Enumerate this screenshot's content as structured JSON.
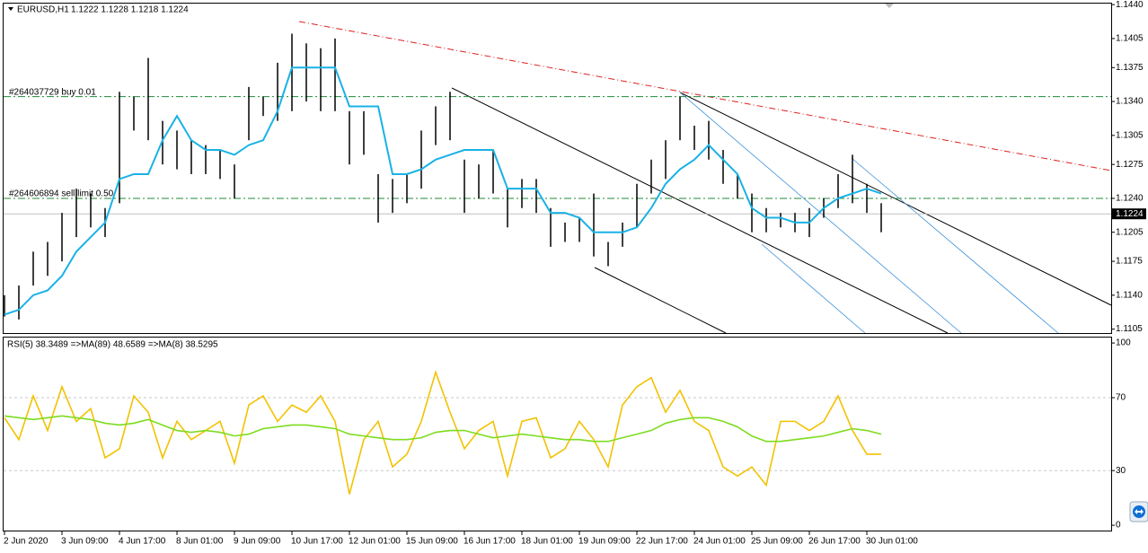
{
  "chart_data": [
    {
      "type": "ohlc",
      "title": "EURUSD,H1",
      "quote": "1.1222 1.1228 1.1218 1.1224",
      "ylim": [
        1.11,
        1.1442
      ],
      "yticks": [
        {
          "value": 1.1105,
          "label": "1.1105"
        },
        {
          "value": 1.114,
          "label": "1.1140"
        },
        {
          "value": 1.1175,
          "label": "1.1175"
        },
        {
          "value": 1.1205,
          "label": "1.1205"
        },
        {
          "value": 1.124,
          "label": "1.1240"
        },
        {
          "value": 1.1275,
          "label": "1.1275"
        },
        {
          "value": 1.1305,
          "label": "1.1305"
        },
        {
          "value": 1.134,
          "label": "1.1340"
        },
        {
          "value": 1.1375,
          "label": "1.1375"
        },
        {
          "value": 1.1405,
          "label": "1.1405"
        },
        {
          "value": 1.144,
          "label": "1.1440"
        }
      ],
      "color": "#000000",
      "high": [
        1.114,
        1.115,
        1.1185,
        1.1195,
        1.1225,
        1.125,
        1.1245,
        1.123,
        1.135,
        1.1345,
        1.1385,
        1.132,
        1.131,
        1.13,
        1.1295,
        1.129,
        1.1275,
        1.1355,
        1.1345,
        1.138,
        1.141,
        1.14,
        1.1395,
        1.1405,
        1.133,
        1.133,
        1.1265,
        1.126,
        1.1265,
        1.131,
        1.1335,
        1.135,
        1.128,
        1.1275,
        1.129,
        1.125,
        1.126,
        1.126,
        1.123,
        1.1215,
        1.122,
        1.1245,
        1.1195,
        1.1215,
        1.1255,
        1.128,
        1.13,
        1.1345,
        1.1315,
        1.132,
        1.129,
        1.1265,
        1.1245,
        1.123,
        1.1225,
        1.1225,
        1.123,
        1.124,
        1.1265,
        1.1285,
        1.1255,
        1.1235
      ],
      "low": [
        1.1118,
        1.1115,
        1.115,
        1.116,
        1.1175,
        1.12,
        1.121,
        1.12,
        1.1235,
        1.131,
        1.13,
        1.1275,
        1.127,
        1.1265,
        1.1265,
        1.126,
        1.124,
        1.13,
        1.1325,
        1.132,
        1.133,
        1.134,
        1.133,
        1.133,
        1.1275,
        1.1285,
        1.1215,
        1.1225,
        1.1235,
        1.125,
        1.1295,
        1.13,
        1.1225,
        1.124,
        1.1245,
        1.121,
        1.123,
        1.1225,
        1.119,
        1.1195,
        1.1195,
        1.118,
        1.117,
        1.119,
        1.121,
        1.1245,
        1.126,
        1.13,
        1.129,
        1.128,
        1.1255,
        1.124,
        1.1205,
        1.1205,
        1.121,
        1.1205,
        1.12,
        1.122,
        1.123,
        1.1235,
        1.1225,
        1.1205
      ],
      "ma": {
        "color": "#19b2e6",
        "values": [
          1.112,
          1.1125,
          1.114,
          1.1145,
          1.116,
          1.1185,
          1.12,
          1.1215,
          1.126,
          1.1265,
          1.1265,
          1.13,
          1.1325,
          1.13,
          1.129,
          1.129,
          1.1285,
          1.1295,
          1.13,
          1.133,
          1.1375,
          1.1375,
          1.1375,
          1.1375,
          1.1335,
          1.1335,
          1.1335,
          1.1265,
          1.1265,
          1.127,
          1.128,
          1.1285,
          1.129,
          1.129,
          1.129,
          1.125,
          1.125,
          1.125,
          1.1225,
          1.1225,
          1.122,
          1.1205,
          1.1205,
          1.1205,
          1.121,
          1.123,
          1.1255,
          1.127,
          1.128,
          1.1295,
          1.128,
          1.1265,
          1.123,
          1.122,
          1.122,
          1.1215,
          1.1215,
          1.123,
          1.124,
          1.1245,
          1.125,
          1.1245
        ]
      },
      "orders": [
        {
          "value": 1.1345,
          "label": "#264037729 buy 0.01"
        },
        {
          "value": 1.124,
          "label": "#264606894 sell limit 0.50"
        }
      ],
      "current_price": {
        "value": 1.1224,
        "label": "1.1224"
      }
    },
    {
      "type": "line",
      "title": "RSI(5) 38.3489 =>MA(89) 48.6589 =>MA(8) 38.5295",
      "categories": [
        "2 Jun 2020",
        null,
        null,
        null,
        "3 Jun 09:00",
        null,
        null,
        null,
        "4 Jun 17:00",
        null,
        null,
        null,
        "8 Jun 01:00",
        null,
        null,
        null,
        "9 Jun 09:00",
        null,
        null,
        null,
        "10 Jun 17:00",
        null,
        null,
        null,
        "12 Jun 01:00",
        null,
        null,
        null,
        "15 Jun 09:00",
        null,
        null,
        null,
        "16 Jun 17:00",
        null,
        null,
        null,
        "18 Jun 01:00",
        null,
        null,
        null,
        "19 Jun 09:00",
        null,
        null,
        null,
        "22 Jun 17:00",
        null,
        null,
        null,
        "24 Jun 01:00",
        null,
        null,
        null,
        "25 Jun 09:00",
        null,
        null,
        null,
        "26 Jun 17:00",
        null,
        null,
        null,
        "30 Jun 01:00",
        null
      ],
      "ylim": [
        -3.4,
        103
      ],
      "yticks": [
        0,
        30,
        70,
        100
      ],
      "levels": [
        30,
        70
      ],
      "series": [
        {
          "color": "#f2c200",
          "values": [
            59,
            47,
            71,
            52,
            76,
            57,
            64,
            37,
            42,
            71,
            62,
            37,
            57,
            47,
            52,
            57,
            34,
            66,
            71,
            57,
            66,
            62,
            71,
            57,
            17,
            47,
            57,
            32,
            39,
            57,
            84,
            62,
            42,
            52,
            57,
            27,
            57,
            59,
            37,
            42,
            57,
            47,
            32,
            66,
            76,
            81,
            62,
            74,
            57,
            52,
            32,
            27,
            32,
            22,
            57,
            57,
            52,
            57,
            71,
            52,
            39,
            39
          ]
        },
        {
          "color": "#7ddc1f",
          "values": [
            60,
            59,
            58,
            59,
            60,
            59,
            58,
            56,
            55,
            56,
            58,
            55,
            52,
            51,
            52,
            51,
            49,
            50,
            53,
            54,
            55,
            55,
            54,
            53,
            50,
            49,
            48,
            47,
            47,
            48,
            51,
            52,
            52,
            50,
            48,
            49,
            50,
            49,
            48,
            47,
            47,
            46,
            46,
            48,
            50,
            52,
            56,
            58,
            59,
            59,
            57,
            54,
            49,
            46,
            46,
            47,
            48,
            49,
            51,
            53,
            52,
            50
          ]
        }
      ]
    }
  ]
}
